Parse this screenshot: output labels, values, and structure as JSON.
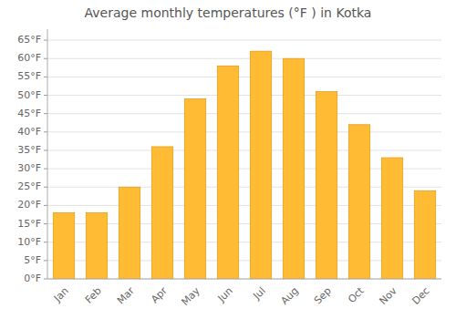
{
  "chart_data": {
    "type": "bar",
    "title": "Average monthly temperatures (°F ) in Kotka",
    "categories": [
      "Jan",
      "Feb",
      "Mar",
      "Apr",
      "May",
      "Jun",
      "Jul",
      "Aug",
      "Sep",
      "Oct",
      "Nov",
      "Dec"
    ],
    "values": [
      18,
      18,
      25,
      36,
      49,
      58,
      62,
      60,
      51,
      42,
      33,
      24
    ],
    "color": "#FFBB33",
    "ylim": [
      0,
      68
    ],
    "yticks": [
      {
        "value": 0,
        "label": "0°F"
      },
      {
        "value": 5,
        "label": "5°F"
      },
      {
        "value": 10,
        "label": "10°F"
      },
      {
        "value": 15,
        "label": "15°F"
      },
      {
        "value": 20,
        "label": "20°F"
      },
      {
        "value": 25,
        "label": "25°F"
      },
      {
        "value": 30,
        "label": "30°F"
      },
      {
        "value": 35,
        "label": "35°F"
      },
      {
        "value": 40,
        "label": "40°F"
      },
      {
        "value": 45,
        "label": "45°F"
      },
      {
        "value": 50,
        "label": "50°F"
      },
      {
        "value": 55,
        "label": "55°F"
      },
      {
        "value": 60,
        "label": "60°F"
      },
      {
        "value": 65,
        "label": "65°F"
      }
    ],
    "grid": true
  }
}
